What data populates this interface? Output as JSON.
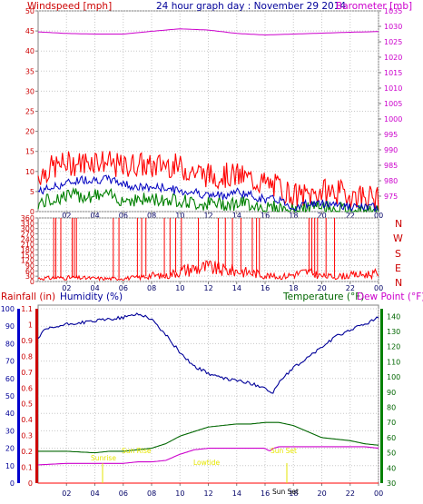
{
  "header": {
    "windspeed_title": "Windspeed [mph]",
    "date_title": "24 hour graph day : November 29 2014",
    "barometer_title": "Barometer [mb]"
  },
  "lower_header": {
    "rainfall_title": "Rainfall (in)",
    "humidity_title": "Humidity (%)",
    "temperature_title": "Temperature (°F)",
    "dewpoint_title": "Dew Point (°F)"
  },
  "compass": [
    "N",
    "W",
    "S",
    "E",
    "N"
  ],
  "sun_events": {
    "sunrise": "Sunrise",
    "sun_rise": "Sun Rise",
    "lowtide": "Lowtide",
    "sun_set_1": "Sun Set",
    "sun_set_2": "Sun Set"
  },
  "colors": {
    "wind": "#ff0000",
    "wind_avg": "#0000c0",
    "gust": "#008000",
    "barometer": "#cc00cc",
    "humidity": "#000099",
    "temperature": "#006600",
    "dewpoint": "#cc00cc",
    "rain": "#ff0000",
    "sun_text": "#e6e600",
    "frame": "#808080"
  },
  "chart_data": [
    {
      "type": "line",
      "title": "Windspeed [mph] / Barometer [mb]",
      "xlabel": "",
      "x_ticks": [
        "02",
        "04",
        "06",
        "08",
        "10",
        "12",
        "14",
        "16",
        "18",
        "20",
        "22",
        "00"
      ],
      "xlim": [
        0,
        24
      ],
      "ylabel_left": "Windspeed [mph]",
      "ylim_left": [
        0,
        50
      ],
      "yticks_left": [
        "0",
        "5",
        "10",
        "15",
        "20",
        "25",
        "30",
        "35",
        "40",
        "45",
        "50"
      ],
      "ylabel_right": "Barometer [mb]",
      "ylim_right": [
        970,
        1035
      ],
      "yticks_right": [
        "975",
        "980",
        "985",
        "990",
        "995",
        "1000",
        "1005",
        "1010",
        "1015",
        "1020",
        "1025",
        "1030",
        "1035"
      ],
      "grid": true,
      "series": [
        {
          "name": "wind_gust",
          "axis": "left",
          "x": [
            0,
            1,
            2,
            3,
            4,
            5,
            6,
            7,
            8,
            9,
            10,
            11,
            12,
            13,
            14,
            15,
            16,
            17,
            18,
            19,
            20,
            21,
            22,
            23,
            24
          ],
          "y": [
            9,
            11,
            12,
            12,
            13,
            12,
            11,
            12,
            11,
            12,
            11,
            10,
            9,
            9,
            9,
            8,
            7,
            6,
            4,
            4,
            5,
            5,
            4,
            4,
            3
          ]
        },
        {
          "name": "wind_avg",
          "axis": "left",
          "x": [
            0,
            1,
            2,
            3,
            4,
            5,
            6,
            7,
            8,
            9,
            10,
            11,
            12,
            13,
            14,
            15,
            16,
            17,
            18,
            19,
            20,
            21,
            22,
            23,
            24
          ],
          "y": [
            5,
            6,
            7,
            8,
            8,
            8,
            7,
            6,
            6,
            6,
            5,
            5,
            4,
            4,
            5,
            4,
            3,
            3,
            1,
            2,
            2,
            2,
            1,
            1,
            1
          ]
        },
        {
          "name": "wind_speed",
          "axis": "left",
          "x": [
            0,
            1,
            2,
            3,
            4,
            5,
            6,
            7,
            8,
            9,
            10,
            11,
            12,
            13,
            14,
            15,
            16,
            17,
            18,
            19,
            20,
            21,
            22,
            23,
            24
          ],
          "y": [
            2,
            3,
            4,
            4,
            4,
            4,
            3,
            3,
            3,
            3,
            3,
            2,
            2,
            2,
            2,
            2,
            1,
            1,
            0,
            1,
            1,
            1,
            0,
            0,
            0
          ]
        },
        {
          "name": "barometer",
          "axis": "right",
          "x": [
            0,
            2,
            4,
            6,
            8,
            10,
            12,
            14,
            16,
            18,
            20,
            22,
            24
          ],
          "y": [
            1028.2,
            1027.7,
            1027.5,
            1027.5,
            1028.4,
            1029.2,
            1028.8,
            1027.7,
            1027.2,
            1027.5,
            1027.8,
            1028.1,
            1028.3
          ]
        }
      ]
    },
    {
      "type": "line",
      "title": "",
      "xlabel": "",
      "x_ticks": [
        "02",
        "04",
        "06",
        "08",
        "10",
        "12",
        "14",
        "16",
        "18",
        "20",
        "22",
        "00"
      ],
      "xlim": [
        0,
        24
      ],
      "ylabel": "",
      "ylim": [
        0,
        360
      ],
      "yticks": [
        "0",
        "30",
        "60",
        "90",
        "120",
        "150",
        "180",
        "210",
        "240",
        "270",
        "300",
        "330",
        "360"
      ],
      "grid": true,
      "series": [
        {
          "name": "wind_direction",
          "x": [
            0,
            1,
            2,
            3,
            4,
            5,
            6,
            7,
            8,
            9,
            10,
            11,
            12,
            13,
            14,
            15,
            16,
            17,
            18,
            19,
            20,
            21,
            22,
            23,
            24
          ],
          "y": [
            18,
            20,
            22,
            20,
            18,
            16,
            18,
            22,
            35,
            30,
            60,
            75,
            80,
            65,
            60,
            50,
            35,
            25,
            40,
            55,
            30,
            28,
            35,
            40,
            45
          ]
        }
      ],
      "spikes_x": [
        1.1,
        1.25,
        1.6,
        2.4,
        2.55,
        2.7,
        5.3,
        5.7,
        7.0,
        7.3,
        7.6,
        8.9,
        9.3,
        9.7,
        10.1,
        11.3,
        12.7,
        13.2,
        13.7,
        14.3,
        15.1,
        15.4,
        15.6,
        19.1,
        19.3,
        19.5,
        19.7,
        20.3,
        20.9
      ]
    },
    {
      "type": "line",
      "title": "",
      "xlabel": "",
      "x_ticks": [
        "02",
        "04",
        "06",
        "08",
        "10",
        "12",
        "14",
        "16",
        "18",
        "20",
        "22",
        "00"
      ],
      "xlim": [
        0,
        24
      ],
      "ylabel_humidity": "Humidity (%)",
      "ylim_humidity": [
        0,
        100
      ],
      "yticks_humidity": [
        "0",
        "10",
        "20",
        "30",
        "40",
        "50",
        "60",
        "70",
        "80",
        "90",
        "100"
      ],
      "ylabel_rain": "Rainfall (in)",
      "ylim_rain": [
        0,
        1.1
      ],
      "yticks_rain": [
        "0",
        "0.1",
        "0.2",
        "0.3",
        "0.4",
        "0.5",
        "0.6",
        "0.7",
        "0.8",
        "0.9",
        "1",
        "1.1"
      ],
      "ylabel_temp": "Temperature (°F)",
      "ylim_temp": [
        30,
        145
      ],
      "yticks_temp": [
        "30",
        "40",
        "50",
        "60",
        "70",
        "80",
        "90",
        "100",
        "110",
        "120",
        "130",
        "140"
      ],
      "grid": true,
      "series": [
        {
          "name": "humidity",
          "axis": "humidity",
          "x": [
            0,
            0.5,
            1,
            2,
            3,
            4,
            5,
            6,
            6.5,
            7,
            7.5,
            8,
            9,
            10,
            11,
            12,
            13,
            14,
            15,
            15.5,
            16,
            16.5,
            17,
            17.5,
            18,
            19,
            20,
            21,
            22,
            23,
            24
          ],
          "y": [
            83,
            88,
            89,
            91,
            92,
            93,
            94,
            95,
            96,
            97,
            96,
            94,
            85,
            75,
            67,
            63,
            60,
            59,
            57,
            56,
            55,
            51,
            58,
            62,
            66,
            72,
            78,
            84,
            88,
            91,
            95
          ]
        },
        {
          "name": "rainfall",
          "axis": "rain",
          "x": [
            0,
            2,
            4,
            6,
            8,
            10,
            12,
            14,
            16,
            18,
            20,
            22,
            24
          ],
          "y": [
            0,
            0,
            0,
            0,
            0,
            0,
            0,
            0,
            0,
            0,
            0,
            0,
            0
          ]
        },
        {
          "name": "temperature",
          "axis": "temp",
          "x": [
            0,
            2,
            4,
            5,
            6,
            7,
            8,
            9,
            10,
            11,
            12,
            13,
            14,
            15,
            16,
            17,
            18,
            19,
            20,
            21,
            22,
            23,
            24
          ],
          "y": [
            51,
            51,
            50,
            51,
            51,
            52,
            53,
            56,
            61,
            64,
            67,
            68,
            69,
            69,
            70,
            70,
            68,
            64,
            60,
            59,
            58,
            56,
            55
          ]
        },
        {
          "name": "dew_point",
          "axis": "temp",
          "x": [
            0,
            2,
            4,
            6,
            7,
            8,
            9,
            10,
            11,
            12,
            13,
            14,
            15,
            16,
            16.3,
            16.6,
            17,
            18,
            19,
            20,
            21,
            22,
            23,
            24
          ],
          "y": [
            42,
            43,
            43,
            43,
            44,
            44,
            45,
            49,
            52,
            53,
            53,
            53,
            53,
            53,
            51,
            53,
            54,
            54,
            54,
            54,
            54,
            54,
            54,
            53
          ]
        }
      ]
    }
  ]
}
